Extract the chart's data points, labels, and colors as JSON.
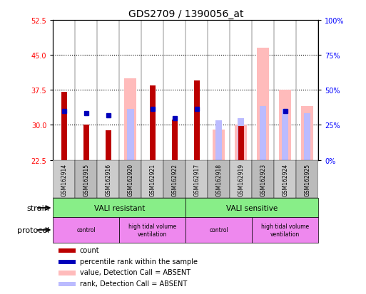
{
  "title": "GDS2709 / 1390056_at",
  "samples": [
    "GSM162914",
    "GSM162915",
    "GSM162916",
    "GSM162920",
    "GSM162921",
    "GSM162922",
    "GSM162917",
    "GSM162918",
    "GSM162919",
    "GSM162923",
    "GSM162924",
    "GSM162925"
  ],
  "ymin": 22.5,
  "ymax": 52.5,
  "yright_min": 0,
  "yright_max": 100,
  "yticks_left": [
    22.5,
    30,
    37.5,
    45,
    52.5
  ],
  "yticks_right": [
    0,
    25,
    50,
    75,
    100
  ],
  "hlines": [
    30,
    37.5,
    45
  ],
  "count_values": [
    37.1,
    30.0,
    28.8,
    null,
    38.5,
    31.1,
    39.5,
    null,
    29.8,
    null,
    null,
    null
  ],
  "percentile_values": [
    33.0,
    32.5,
    32.0,
    null,
    33.5,
    31.5,
    33.5,
    null,
    null,
    null,
    33.0,
    null
  ],
  "absent_value_bars": [
    null,
    null,
    null,
    40.0,
    null,
    null,
    null,
    29.0,
    30.0,
    46.5,
    37.5,
    34.0
  ],
  "absent_rank_bars": [
    null,
    null,
    null,
    33.5,
    null,
    null,
    null,
    31.0,
    31.5,
    34.0,
    33.5,
    32.5
  ],
  "count_color": "#bb0000",
  "percentile_color": "#0000bb",
  "absent_value_color": "#ffbbbb",
  "absent_rank_color": "#bbbbff",
  "strain_groups": [
    {
      "label": "VALI resistant",
      "start": 0,
      "end": 6,
      "color": "#88ee88"
    },
    {
      "label": "VALI sensitive",
      "start": 6,
      "end": 12,
      "color": "#88ee88"
    }
  ],
  "protocol_groups": [
    {
      "label": "control",
      "start": 0,
      "end": 3,
      "color": "#ee88ee"
    },
    {
      "label": "high tidal volume\nventilation",
      "start": 3,
      "end": 6,
      "color": "#ee88ee"
    },
    {
      "label": "control",
      "start": 6,
      "end": 9,
      "color": "#ee88ee"
    },
    {
      "label": "high tidal volume\nventilation",
      "start": 9,
      "end": 12,
      "color": "#ee88ee"
    }
  ],
  "legend_items": [
    {
      "label": "count",
      "color": "#bb0000"
    },
    {
      "label": "percentile rank within the sample",
      "color": "#0000bb"
    },
    {
      "label": "value, Detection Call = ABSENT",
      "color": "#ffbbbb"
    },
    {
      "label": "rank, Detection Call = ABSENT",
      "color": "#bbbbff"
    }
  ],
  "strain_label": "strain",
  "protocol_label": "protocol"
}
